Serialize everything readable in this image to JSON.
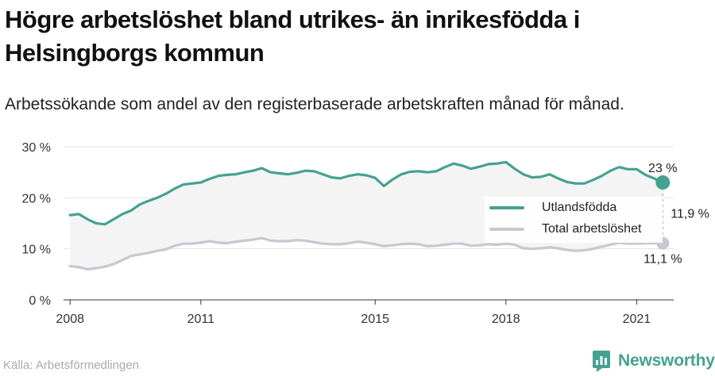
{
  "title": "Högre arbetslöshet bland utrikes- än inrikesfödda i Helsingborgs kommun",
  "subtitle": "Arbetssökande som andel av den registerbaserade arbetskraften månad för månad.",
  "source": "Källa: Arbetsförmedlingen",
  "brand": {
    "name": "Newsworthy",
    "icon": "newsworthy-logo-icon"
  },
  "colors": {
    "foreign": "#45a291",
    "total": "#c8c8d2",
    "band": "#f4f4f4",
    "grid": "#e2e2e2",
    "axis": "#333333"
  },
  "chart_data": {
    "type": "line",
    "title": "Högre arbetslöshet bland utrikes- än inrikesfödda i Helsingborgs kommun",
    "subtitle": "Arbetssökande som andel av den registerbaserade arbetskraften månad för månad.",
    "xlabel": "",
    "ylabel": "",
    "ylim": [
      0,
      30
    ],
    "xlim": [
      2007.85,
      2021.85
    ],
    "x_ticks": [
      2008,
      2011,
      2015,
      2018,
      2021
    ],
    "y_ticks": [
      0,
      10,
      20,
      30
    ],
    "y_tick_labels": [
      "0 %",
      "10 %",
      "20 %",
      "30 %"
    ],
    "grid": true,
    "legend": {
      "position": "right",
      "entries": [
        "Utlandsfödda",
        "Total arbetslöshet"
      ]
    },
    "series": [
      {
        "name": "Utlandsfödda",
        "end_label": "23 %",
        "points": [
          [
            2008.0,
            16.6
          ],
          [
            2008.2,
            16.8
          ],
          [
            2008.4,
            15.8
          ],
          [
            2008.6,
            15.0
          ],
          [
            2008.8,
            14.8
          ],
          [
            2009.0,
            15.8
          ],
          [
            2009.2,
            16.8
          ],
          [
            2009.4,
            17.5
          ],
          [
            2009.6,
            18.7
          ],
          [
            2009.8,
            19.4
          ],
          [
            2010.0,
            20.0
          ],
          [
            2010.2,
            20.8
          ],
          [
            2010.4,
            21.8
          ],
          [
            2010.6,
            22.6
          ],
          [
            2010.8,
            22.8
          ],
          [
            2011.0,
            23.0
          ],
          [
            2011.2,
            23.7
          ],
          [
            2011.4,
            24.3
          ],
          [
            2011.6,
            24.5
          ],
          [
            2011.8,
            24.6
          ],
          [
            2012.0,
            25.0
          ],
          [
            2012.2,
            25.3
          ],
          [
            2012.4,
            25.8
          ],
          [
            2012.6,
            25.0
          ],
          [
            2012.8,
            24.8
          ],
          [
            2013.0,
            24.6
          ],
          [
            2013.2,
            24.9
          ],
          [
            2013.4,
            25.3
          ],
          [
            2013.6,
            25.2
          ],
          [
            2013.8,
            24.6
          ],
          [
            2014.0,
            24.0
          ],
          [
            2014.2,
            23.8
          ],
          [
            2014.4,
            24.3
          ],
          [
            2014.6,
            24.6
          ],
          [
            2014.8,
            24.4
          ],
          [
            2015.0,
            23.9
          ],
          [
            2015.2,
            22.3
          ],
          [
            2015.4,
            23.6
          ],
          [
            2015.6,
            24.6
          ],
          [
            2015.8,
            25.1
          ],
          [
            2016.0,
            25.2
          ],
          [
            2016.2,
            25.0
          ],
          [
            2016.4,
            25.2
          ],
          [
            2016.6,
            26.0
          ],
          [
            2016.8,
            26.7
          ],
          [
            2017.0,
            26.3
          ],
          [
            2017.2,
            25.7
          ],
          [
            2017.4,
            26.1
          ],
          [
            2017.6,
            26.6
          ],
          [
            2017.8,
            26.7
          ],
          [
            2018.0,
            27.0
          ],
          [
            2018.2,
            25.7
          ],
          [
            2018.4,
            24.6
          ],
          [
            2018.6,
            24.0
          ],
          [
            2018.8,
            24.1
          ],
          [
            2019.0,
            24.6
          ],
          [
            2019.2,
            23.8
          ],
          [
            2019.4,
            23.1
          ],
          [
            2019.6,
            22.8
          ],
          [
            2019.8,
            22.8
          ],
          [
            2020.0,
            23.5
          ],
          [
            2020.2,
            24.3
          ],
          [
            2020.4,
            25.3
          ],
          [
            2020.6,
            26.0
          ],
          [
            2020.8,
            25.6
          ],
          [
            2021.0,
            25.6
          ],
          [
            2021.2,
            24.5
          ],
          [
            2021.4,
            23.8
          ],
          [
            2021.6,
            23.0
          ]
        ]
      },
      {
        "name": "Total arbetslöshet",
        "end_label": "11,1 %",
        "points": [
          [
            2008.0,
            6.6
          ],
          [
            2008.2,
            6.4
          ],
          [
            2008.4,
            6.0
          ],
          [
            2008.6,
            6.2
          ],
          [
            2008.8,
            6.5
          ],
          [
            2009.0,
            7.0
          ],
          [
            2009.2,
            7.8
          ],
          [
            2009.4,
            8.6
          ],
          [
            2009.6,
            8.9
          ],
          [
            2009.8,
            9.2
          ],
          [
            2010.0,
            9.6
          ],
          [
            2010.2,
            9.9
          ],
          [
            2010.4,
            10.6
          ],
          [
            2010.6,
            11.0
          ],
          [
            2010.8,
            11.0
          ],
          [
            2011.0,
            11.2
          ],
          [
            2011.2,
            11.5
          ],
          [
            2011.4,
            11.2
          ],
          [
            2011.6,
            11.1
          ],
          [
            2011.8,
            11.4
          ],
          [
            2012.0,
            11.6
          ],
          [
            2012.2,
            11.8
          ],
          [
            2012.4,
            12.1
          ],
          [
            2012.6,
            11.6
          ],
          [
            2012.8,
            11.5
          ],
          [
            2013.0,
            11.5
          ],
          [
            2013.2,
            11.7
          ],
          [
            2013.4,
            11.6
          ],
          [
            2013.6,
            11.3
          ],
          [
            2013.8,
            11.0
          ],
          [
            2014.0,
            10.9
          ],
          [
            2014.2,
            10.9
          ],
          [
            2014.4,
            11.1
          ],
          [
            2014.6,
            11.4
          ],
          [
            2014.8,
            11.2
          ],
          [
            2015.0,
            10.9
          ],
          [
            2015.2,
            10.5
          ],
          [
            2015.4,
            10.7
          ],
          [
            2015.6,
            10.9
          ],
          [
            2015.8,
            11.0
          ],
          [
            2016.0,
            10.9
          ],
          [
            2016.2,
            10.5
          ],
          [
            2016.4,
            10.6
          ],
          [
            2016.6,
            10.8
          ],
          [
            2016.8,
            11.0
          ],
          [
            2017.0,
            11.0
          ],
          [
            2017.2,
            10.6
          ],
          [
            2017.4,
            10.7
          ],
          [
            2017.6,
            10.9
          ],
          [
            2017.8,
            10.8
          ],
          [
            2018.0,
            11.0
          ],
          [
            2018.2,
            10.8
          ],
          [
            2018.4,
            10.1
          ],
          [
            2018.6,
            10.0
          ],
          [
            2018.8,
            10.1
          ],
          [
            2019.0,
            10.3
          ],
          [
            2019.2,
            10.1
          ],
          [
            2019.4,
            9.8
          ],
          [
            2019.6,
            9.6
          ],
          [
            2019.8,
            9.7
          ],
          [
            2020.0,
            10.0
          ],
          [
            2020.2,
            10.4
          ],
          [
            2020.4,
            10.8
          ],
          [
            2020.6,
            11.2
          ],
          [
            2020.8,
            11.0
          ],
          [
            2021.0,
            11.0
          ],
          [
            2021.2,
            11.1
          ],
          [
            2021.4,
            11.1
          ],
          [
            2021.6,
            11.1
          ]
        ]
      }
    ],
    "gap_annotation": {
      "label": "11,9 %",
      "from": 11.1,
      "to": 23.0,
      "x": 2021.6
    }
  }
}
